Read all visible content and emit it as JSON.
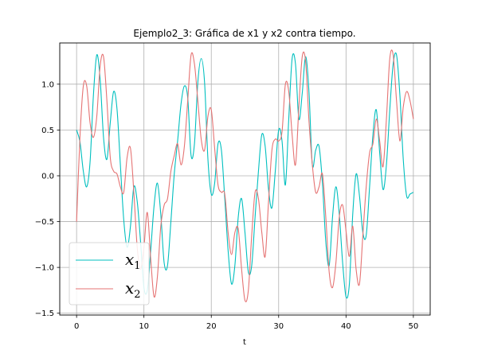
{
  "chart_data": {
    "type": "line",
    "title": "Ejemplo2_3: Gráfica de x1 y x2 contra tiempo.",
    "xlabel": "t",
    "ylabel": "",
    "xlim": [
      -2.5,
      52.5
    ],
    "ylim": [
      -1.52,
      1.45
    ],
    "xticks": [
      0,
      10,
      20,
      30,
      40,
      50
    ],
    "yticks": [
      -1.5,
      -1.0,
      -0.5,
      0.0,
      0.5,
      1.0
    ],
    "ytick_labels": [
      "−1.5",
      "−1.0",
      "−0.5",
      "0.0",
      "0.5",
      "1.0"
    ],
    "grid": true,
    "legend_position": "lower-left",
    "series": [
      {
        "name": "x1",
        "legend_main": "x",
        "legend_sub": "1",
        "color": "#00bfbf",
        "x": [
          0,
          0.5,
          1,
          1.5,
          2,
          2.5,
          3,
          3.5,
          4,
          4.5,
          5,
          5.5,
          6,
          6.5,
          7,
          7.5,
          8,
          8.5,
          9,
          9.5,
          10,
          10.5,
          11,
          11.5,
          12,
          12.5,
          13,
          13.5,
          14,
          14.5,
          15,
          15.5,
          16,
          16.5,
          17,
          17.5,
          18,
          18.5,
          19,
          19.5,
          20,
          20.5,
          21,
          21.5,
          22,
          22.5,
          23,
          23.5,
          24,
          24.5,
          25,
          25.5,
          26,
          26.5,
          27,
          27.5,
          28,
          28.5,
          29,
          29.5,
          30,
          30.5,
          31,
          31.5,
          32,
          32.5,
          33,
          33.5,
          34,
          34.5,
          35,
          35.5,
          36,
          36.5,
          37,
          37.5,
          38,
          38.5,
          39,
          39.5,
          40,
          40.5,
          41,
          41.5,
          42,
          42.5,
          43,
          43.5,
          44,
          44.5,
          45,
          45.5,
          46,
          46.5,
          47,
          47.5,
          48,
          48.5,
          49,
          49.5,
          50
        ],
        "y": [
          0.5,
          0.37,
          0.05,
          -0.12,
          0.15,
          0.88,
          1.32,
          1.05,
          0.42,
          0.18,
          0.58,
          0.92,
          0.73,
          0.12,
          -0.48,
          -0.78,
          -0.55,
          -0.12,
          -0.28,
          -0.72,
          -1.22,
          -1.25,
          -0.82,
          -0.33,
          -0.08,
          -0.42,
          -0.95,
          -0.98,
          -0.5,
          0.02,
          0.38,
          0.78,
          0.98,
          0.85,
          0.22,
          0.35,
          1.02,
          1.28,
          1.02,
          0.18,
          -0.2,
          -0.08,
          0.35,
          0.28,
          -0.25,
          -0.82,
          -1.18,
          -0.98,
          -0.45,
          -0.25,
          -0.62,
          -1.05,
          -0.98,
          -0.45,
          0.05,
          0.45,
          0.32,
          -0.15,
          -0.35,
          0.05,
          0.5,
          0.38,
          -0.1,
          0.62,
          1.28,
          1.22,
          0.62,
          0.9,
          1.3,
          0.92,
          0.12,
          0.28,
          0.32,
          -0.08,
          -0.72,
          -0.98,
          -0.45,
          -0.12,
          -0.42,
          -0.95,
          -1.32,
          -1.18,
          -0.42,
          0.02,
          -0.22,
          -0.62,
          -0.65,
          -0.12,
          0.45,
          0.72,
          0.25,
          -0.15,
          0.12,
          0.72,
          1.22,
          1.32,
          0.88,
          0.18,
          -0.22,
          -0.2,
          -0.18
        ]
      },
      {
        "name": "x2",
        "legend_main": "x",
        "legend_sub": "2",
        "color": "#e57373",
        "x": [
          0,
          0.5,
          1,
          1.5,
          2,
          2.5,
          3,
          3.5,
          4,
          4.5,
          5,
          5.5,
          6,
          6.5,
          7,
          7.5,
          8,
          8.5,
          9,
          9.5,
          10,
          10.5,
          11,
          11.5,
          12,
          12.5,
          13,
          13.5,
          14,
          14.5,
          15,
          15.5,
          16,
          16.5,
          17,
          17.5,
          18,
          18.5,
          19,
          19.5,
          20,
          20.5,
          21,
          21.5,
          22,
          22.5,
          23,
          23.5,
          24,
          24.5,
          25,
          25.5,
          26,
          26.5,
          27,
          27.5,
          28,
          28.5,
          29,
          29.5,
          30,
          30.5,
          31,
          31.5,
          32,
          32.5,
          33,
          33.5,
          34,
          34.5,
          35,
          35.5,
          36,
          36.5,
          37,
          37.5,
          38,
          38.5,
          39,
          39.5,
          40,
          40.5,
          41,
          41.5,
          42,
          42.5,
          43,
          43.5,
          44,
          44.5,
          45,
          45.5,
          46,
          46.5,
          47,
          47.5,
          48,
          48.5,
          49,
          49.5,
          50
        ],
        "y": [
          -0.5,
          0.42,
          0.98,
          0.98,
          0.58,
          0.42,
          0.65,
          1.2,
          1.3,
          0.82,
          0.2,
          0.05,
          0.02,
          -0.12,
          -0.18,
          0.2,
          0.3,
          -0.18,
          -0.78,
          -1.02,
          -0.78,
          -0.4,
          -0.9,
          -1.32,
          -1.1,
          -0.55,
          -0.32,
          -0.25,
          0.05,
          0.22,
          0.35,
          0.12,
          0.32,
          0.82,
          1.32,
          1.22,
          0.82,
          0.4,
          0.28,
          0.65,
          0.72,
          0.3,
          -0.1,
          -0.18,
          -0.2,
          -0.62,
          -0.86,
          -0.62,
          -0.58,
          -1.02,
          -1.36,
          -1.25,
          -0.65,
          -0.18,
          -0.25,
          -0.62,
          -0.88,
          -0.28,
          0.28,
          0.4,
          0.38,
          0.48,
          1.0,
          0.92,
          0.45,
          0.12,
          0.75,
          1.3,
          1.25,
          0.6,
          0.12,
          -0.18,
          -0.12,
          0.02,
          -0.45,
          -1.05,
          -1.22,
          -0.95,
          -0.45,
          -0.32,
          -0.6,
          -0.88,
          -0.55,
          -1.02,
          -1.18,
          -0.65,
          -0.12,
          0.25,
          0.35,
          0.62,
          0.38,
          0.1,
          0.62,
          1.28,
          1.32,
          0.82,
          0.38,
          0.75,
          0.92,
          0.82,
          0.62
        ]
      }
    ]
  }
}
